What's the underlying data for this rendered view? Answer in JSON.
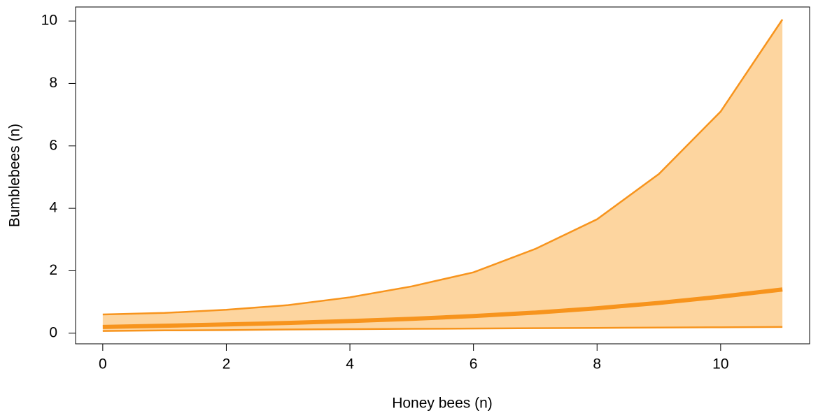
{
  "chart_data": {
    "type": "line",
    "x_label": "Honey bees (n)",
    "y_label": "Bumblebees (n)",
    "x": [
      0,
      1,
      2,
      3,
      4,
      5,
      6,
      7,
      8,
      9,
      10,
      11
    ],
    "series": [
      {
        "color": "#f7941d",
        "values": [
          0.2,
          0.24,
          0.28,
          0.33,
          0.39,
          0.46,
          0.55,
          0.66,
          0.8,
          0.97,
          1.17,
          1.4
        ]
      }
    ],
    "band": {
      "color": "#fdd59f",
      "line_color": "#f7941d",
      "upper": [
        0.6,
        0.65,
        0.75,
        0.9,
        1.15,
        1.5,
        1.95,
        2.7,
        3.65,
        5.1,
        7.1,
        10.05
      ],
      "lower": [
        0.07,
        0.09,
        0.1,
        0.12,
        0.13,
        0.14,
        0.15,
        0.16,
        0.17,
        0.18,
        0.19,
        0.2
      ]
    },
    "xlim": [
      -0.44,
      11.44
    ],
    "xticks": [
      0,
      2,
      4,
      6,
      8,
      10
    ],
    "ylim": [
      -0.34,
      10.45
    ],
    "yticks": [
      0,
      2,
      4,
      6,
      8,
      10
    ]
  }
}
